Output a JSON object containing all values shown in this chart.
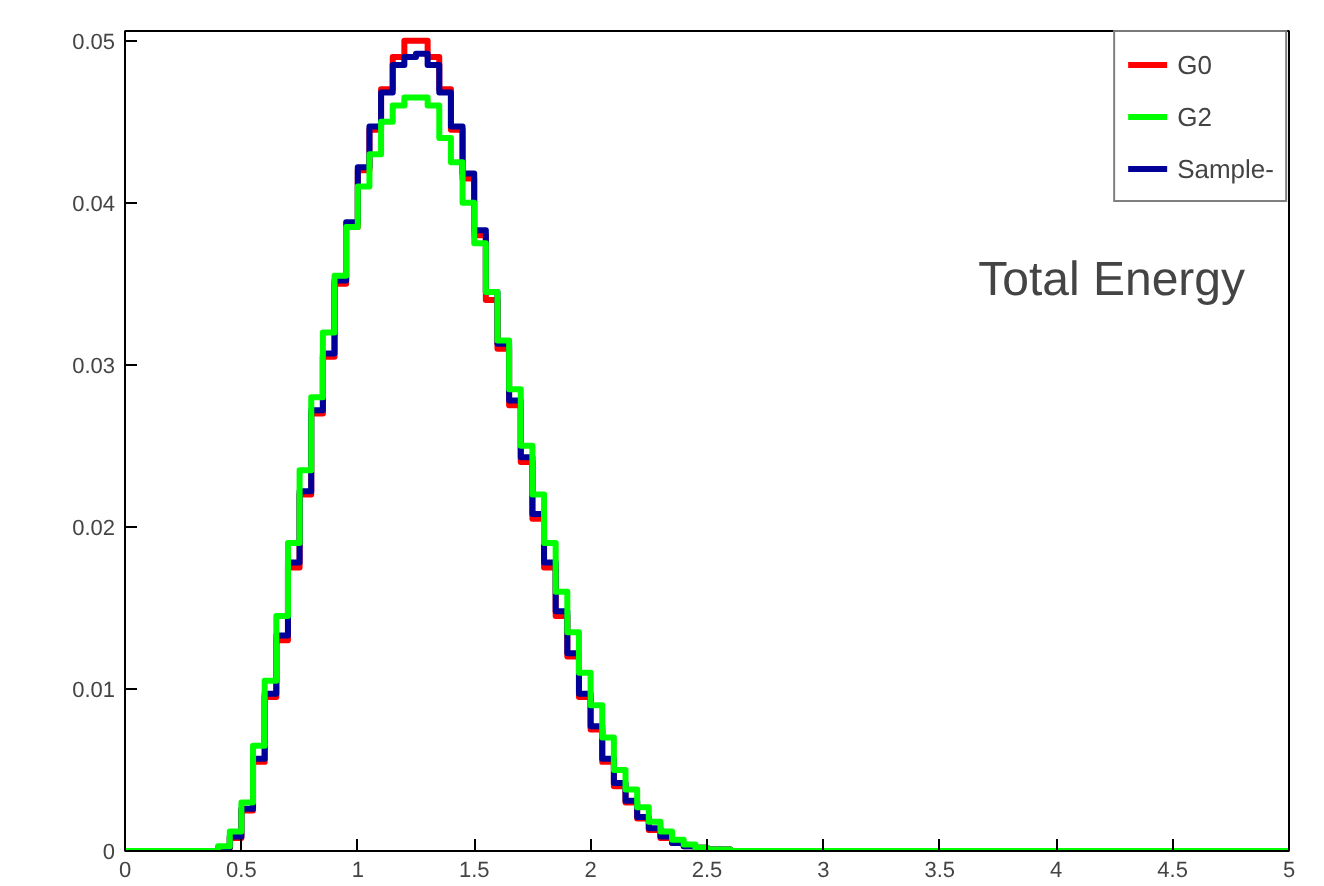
{
  "chart_data": {
    "type": "histogram",
    "annotations": [
      "Total Energy"
    ],
    "bins": [
      0,
      0.05,
      0.1,
      0.15,
      0.2,
      0.25,
      0.3,
      0.35,
      0.4,
      0.45,
      0.5,
      0.55,
      0.6,
      0.65,
      0.7,
      0.75,
      0.8,
      0.85,
      0.9,
      0.95,
      1,
      1.05,
      1.1,
      1.15,
      1.2,
      1.25,
      1.3,
      1.35,
      1.4,
      1.45,
      1.5,
      1.55,
      1.6,
      1.65,
      1.7,
      1.75,
      1.8,
      1.85,
      1.9,
      1.95,
      2,
      2.05,
      2.1,
      2.15,
      2.2,
      2.25,
      2.3,
      2.35,
      2.4,
      2.45,
      2.5,
      2.55,
      2.6,
      2.65,
      2.7,
      2.75,
      2.8,
      2.85,
      2.9,
      2.95,
      3,
      3.05,
      3.1,
      3.15,
      3.2,
      3.25,
      3.3,
      3.35,
      3.4,
      3.45,
      3.5,
      3.55,
      3.6,
      3.65,
      3.7,
      3.75,
      3.8,
      3.85,
      3.9,
      3.95,
      4,
      4.05,
      4.1,
      4.15,
      4.2,
      4.25,
      4.3,
      4.35,
      4.4,
      4.45,
      4.5,
      4.55,
      4.6,
      4.65,
      4.7,
      4.75,
      4.8,
      4.85,
      4.9,
      4.95,
      5
    ],
    "series": [
      {
        "name": "G0",
        "color": "#ff0000",
        "values": [
          0,
          0,
          0,
          0,
          0,
          0,
          0,
          0,
          0.0002,
          0.0008,
          0.0025,
          0.0055,
          0.0095,
          0.013,
          0.0175,
          0.022,
          0.027,
          0.0305,
          0.035,
          0.0385,
          0.042,
          0.0445,
          0.047,
          0.049,
          0.05,
          0.05,
          0.049,
          0.047,
          0.0445,
          0.0415,
          0.038,
          0.034,
          0.031,
          0.0275,
          0.024,
          0.0205,
          0.0175,
          0.0145,
          0.012,
          0.0095,
          0.0075,
          0.0055,
          0.004,
          0.003,
          0.002,
          0.0013,
          0.0008,
          0.0005,
          0.0003,
          0.0002,
          0.0001,
          0.0001,
          0,
          0,
          0,
          0,
          0,
          0,
          0,
          0,
          0,
          0,
          0,
          0,
          0,
          0,
          0,
          0,
          0,
          0,
          0,
          0,
          0,
          0,
          0,
          0,
          0,
          0,
          0,
          0,
          0,
          0,
          0,
          0,
          0,
          0,
          0,
          0,
          0,
          0,
          0,
          0,
          0,
          0,
          0,
          0,
          0,
          0,
          0,
          0
        ]
      },
      {
        "name": "G2",
        "color": "#00ff00",
        "values": [
          0,
          0,
          0,
          0,
          0,
          0,
          0,
          0,
          0.0003,
          0.0012,
          0.003,
          0.0065,
          0.0105,
          0.0145,
          0.019,
          0.0235,
          0.028,
          0.032,
          0.0355,
          0.0385,
          0.041,
          0.043,
          0.045,
          0.046,
          0.0465,
          0.0465,
          0.046,
          0.044,
          0.0425,
          0.04,
          0.0375,
          0.0345,
          0.0315,
          0.0285,
          0.025,
          0.022,
          0.019,
          0.016,
          0.0135,
          0.011,
          0.009,
          0.007,
          0.005,
          0.0038,
          0.0027,
          0.0018,
          0.0012,
          0.0007,
          0.0004,
          0.0002,
          0.0001,
          0.0001,
          0,
          0,
          0,
          0,
          0,
          0,
          0,
          0,
          0,
          0,
          0,
          0,
          0,
          0,
          0,
          0,
          0,
          0,
          0,
          0,
          0,
          0,
          0,
          0,
          0,
          0,
          0,
          0,
          0,
          0,
          0,
          0,
          0,
          0,
          0,
          0,
          0,
          0,
          0,
          0,
          0,
          0,
          0,
          0,
          0,
          0,
          0,
          0
        ]
      },
      {
        "name": "Sample-",
        "color": "#000099",
        "values": [
          0,
          0,
          0,
          0,
          0,
          0,
          0,
          0,
          0.0002,
          0.0009,
          0.0026,
          0.0057,
          0.0097,
          0.0133,
          0.0178,
          0.0222,
          0.0272,
          0.0307,
          0.0352,
          0.0388,
          0.0422,
          0.0447,
          0.0468,
          0.0485,
          0.049,
          0.0492,
          0.0485,
          0.0468,
          0.0447,
          0.0418,
          0.0383,
          0.0345,
          0.0313,
          0.0278,
          0.0243,
          0.0208,
          0.0178,
          0.0148,
          0.0122,
          0.0097,
          0.0077,
          0.0057,
          0.0042,
          0.0031,
          0.0021,
          0.0014,
          0.0009,
          0.0005,
          0.0003,
          0.0002,
          0.0001,
          0.0001,
          0,
          0,
          0,
          0,
          0,
          0,
          0,
          0,
          0,
          0,
          0,
          0,
          0,
          0,
          0,
          0,
          0,
          0,
          0,
          0,
          0,
          0,
          0,
          0,
          0,
          0,
          0,
          0,
          0,
          0,
          0,
          0,
          0,
          0,
          0,
          0,
          0,
          0,
          0,
          0,
          0,
          0,
          0,
          0,
          0,
          0,
          0,
          0
        ]
      }
    ],
    "xlim": [
      0,
      5
    ],
    "ylim": [
      0,
      0.0506
    ],
    "xticks": [
      0,
      0.5,
      1,
      1.5,
      2,
      2.5,
      3,
      3.5,
      4,
      4.5,
      5
    ],
    "yticks": [
      0,
      0.01,
      0.02,
      0.03,
      0.04,
      0.05
    ],
    "grid": false,
    "legend": "top right"
  }
}
